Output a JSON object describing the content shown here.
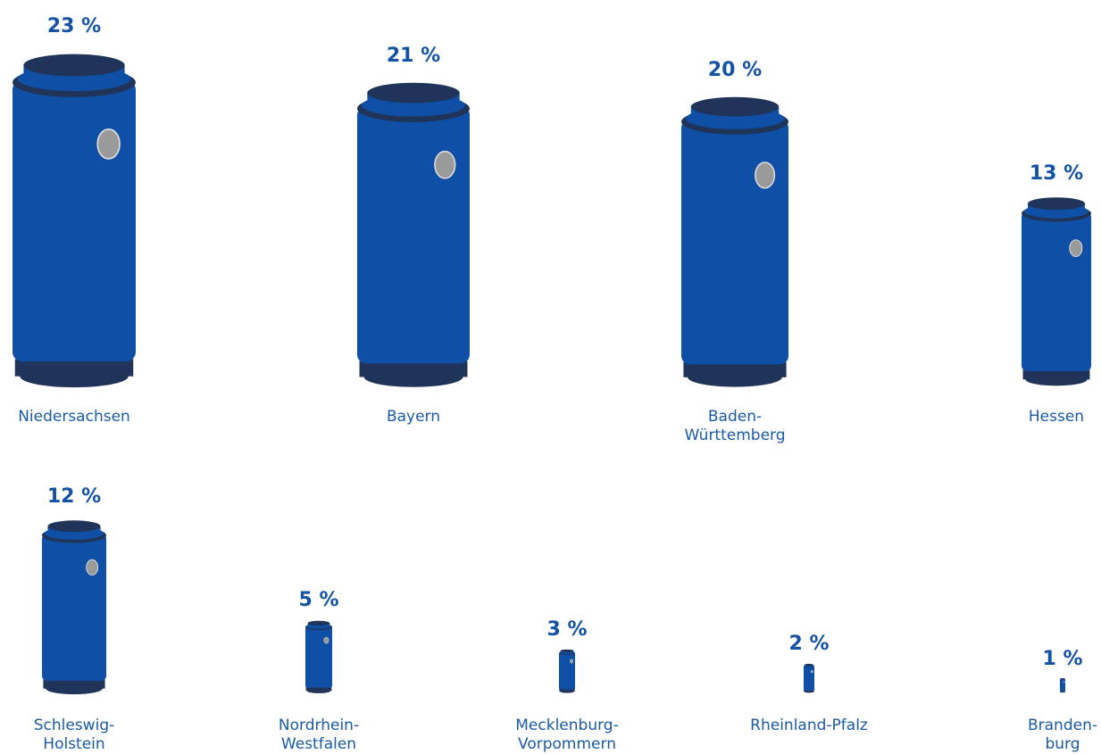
{
  "chart_data": {
    "type": "pictograph",
    "categories": [
      "Niedersachsen",
      "Bayern",
      "Baden-\nWürttemberg",
      "Hessen",
      "Schleswig-\nHolstein",
      "Nordrhein-\nWestfalen",
      "Mecklenburg-\nVorpommern",
      "Rheinland-Pfalz",
      "Branden-\nburg"
    ],
    "values": [
      23,
      21,
      20,
      13,
      12,
      5,
      3,
      2,
      1
    ],
    "value_labels": [
      "23 %",
      "21 %",
      "20 %",
      "13 %",
      "12 %",
      "5 %",
      "3 %",
      "2 %",
      "1 %"
    ],
    "color": "#0f4fa5"
  }
}
